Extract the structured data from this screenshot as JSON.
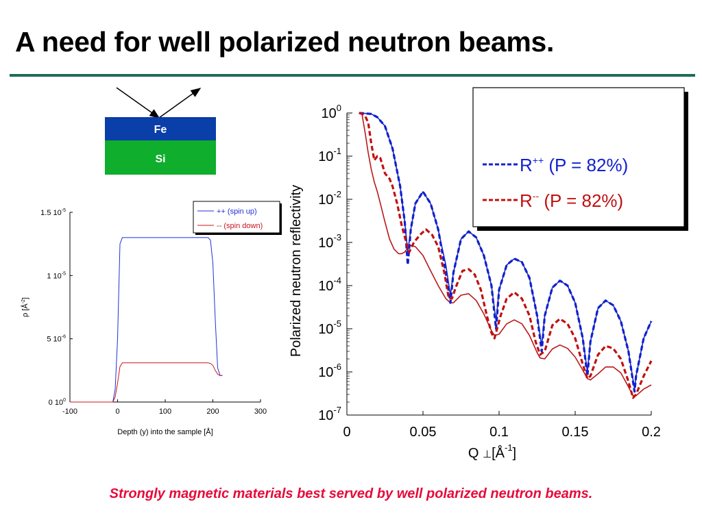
{
  "slide": {
    "title": "A need for well polarized neutron beams.",
    "caption": "Strongly magnetic materials best served by well polarized neutron beams.",
    "colors": {
      "title_rule": "#1f6b5b",
      "caption": "#e60b3a"
    }
  },
  "diagram": {
    "layers": [
      {
        "label": "Fe",
        "color": "#0a3ea8"
      },
      {
        "label": "Si",
        "color": "#0fae2c"
      }
    ],
    "icons": [
      "incident-beam-arrow-icon",
      "reflected-beam-arrow-icon"
    ]
  },
  "chart_data": [
    {
      "type": "line",
      "xlabel": "Depth (y) into the sample [Å]",
      "ylabel": "ρ  [Å-2]",
      "xlim": [
        -100,
        300
      ],
      "ylim": [
        0,
        1.5e-05
      ],
      "x_ticks": [
        {
          "value": -100,
          "label": "-100"
        },
        {
          "value": 0,
          "label": "0"
        },
        {
          "value": 100,
          "label": "100"
        },
        {
          "value": 200,
          "label": "200"
        },
        {
          "value": 300,
          "label": "300"
        }
      ],
      "y_ticks": [
        {
          "value": 0,
          "mant": "0 10",
          "exp": "0"
        },
        {
          "value": 5e-06,
          "mant": "5 10",
          "exp": "-6"
        },
        {
          "value": 1e-05,
          "mant": "1 10",
          "exp": "-5"
        },
        {
          "value": 1.5e-05,
          "mant": "1.5 10",
          "exp": "-5"
        }
      ],
      "legend_position": "top-right",
      "series": [
        {
          "name": "++ (spin up)",
          "color": "#1f2fd6",
          "x": [
            -100,
            -10,
            -5,
            0,
            5,
            10,
            190,
            195,
            200,
            205,
            210,
            215,
            220
          ],
          "y": [
            0,
            0,
            1e-06,
            5e-06,
            1.25e-05,
            1.3e-05,
            1.3e-05,
            1.28e-05,
            1.1e-05,
            6.5e-06,
            2.7e-06,
            2.1e-06,
            2.1e-06
          ]
        },
        {
          "name": "-- (spin down)",
          "color": "#c8141e",
          "x": [
            -100,
            -10,
            -5,
            0,
            5,
            10,
            190,
            195,
            200,
            205,
            210,
            215,
            220
          ],
          "y": [
            0,
            0,
            4e-07,
            1.5e-06,
            2.8e-06,
            3.1e-06,
            3.1e-06,
            3.05e-06,
            2.9e-06,
            2.5e-06,
            2.2e-06,
            2.1e-06,
            2.1e-06
          ]
        }
      ]
    },
    {
      "type": "line",
      "xlabel": "Q ⊥[Å-1]",
      "xlabel_parts": {
        "q": "Q",
        "perp": "⊥",
        "unit": "[Å",
        "exp": "-1",
        "close": "]"
      },
      "ylabel": "Polarized neutron reflectivity",
      "xlim": [
        0,
        0.2
      ],
      "ylim": [
        1e-07,
        1
      ],
      "y_scale": "log",
      "x_ticks": [
        {
          "value": 0,
          "label": "0"
        },
        {
          "value": 0.05,
          "label": "0.05"
        },
        {
          "value": 0.1,
          "label": "0.1"
        },
        {
          "value": 0.15,
          "label": "0.15"
        },
        {
          "value": 0.2,
          "label": "0.2"
        }
      ],
      "y_ticks": [
        {
          "value": 1,
          "mant": "10",
          "exp": "0"
        },
        {
          "value": 0.1,
          "mant": "10",
          "exp": "-1"
        },
        {
          "value": 0.01,
          "mant": "10",
          "exp": "-2"
        },
        {
          "value": 0.001,
          "mant": "10",
          "exp": "-3"
        },
        {
          "value": 0.0001,
          "mant": "10",
          "exp": "-4"
        },
        {
          "value": 1e-05,
          "mant": "10",
          "exp": "-5"
        },
        {
          "value": 1e-06,
          "mant": "10",
          "exp": "-6"
        },
        {
          "value": 1e-07,
          "mant": "10",
          "exp": "-7"
        }
      ],
      "legend": [
        {
          "base": "R",
          "sup": "++",
          "rest": " (P = 82%)",
          "color": "#1020d0"
        },
        {
          "base": "R",
          "sup": "--",
          "rest": " (P = 82%)",
          "color": "#c01010"
        }
      ],
      "legend_position": "top-right",
      "series": [
        {
          "name": "R++ dashed",
          "color": "#1020d0",
          "dash": true,
          "x": [
            0.008,
            0.012,
            0.016,
            0.02,
            0.025,
            0.03,
            0.035,
            0.038,
            0.04,
            0.042,
            0.045,
            0.05,
            0.055,
            0.06,
            0.065,
            0.068,
            0.07,
            0.075,
            0.08,
            0.085,
            0.09,
            0.095,
            0.098,
            0.1,
            0.105,
            0.11,
            0.115,
            0.12,
            0.125,
            0.128,
            0.13,
            0.135,
            0.14,
            0.145,
            0.15,
            0.155,
            0.158,
            0.16,
            0.165,
            0.17,
            0.175,
            0.18,
            0.185,
            0.189,
            0.19,
            0.195,
            0.2
          ],
          "y": [
            1.0,
            0.98,
            0.95,
            0.8,
            0.5,
            0.15,
            0.02,
            0.003,
            0.0003,
            0.002,
            0.008,
            0.015,
            0.008,
            0.002,
            0.0002,
            4e-05,
            0.0002,
            0.0012,
            0.0018,
            0.0013,
            0.0005,
            0.0001,
            1e-05,
            8e-05,
            0.0003,
            0.00042,
            0.00035,
            0.00015,
            2e-05,
            3e-06,
            2e-05,
            9e-05,
            0.00013,
            0.0001,
            4e-05,
            6e-06,
            8e-07,
            5e-06,
            3e-05,
            4.5e-05,
            3.5e-05,
            1.5e-05,
            3e-06,
            3.5e-07,
            8e-07,
            6e-06,
            1.5e-05
          ]
        },
        {
          "name": "R-- dashed",
          "color": "#c01010",
          "dash": true,
          "x": [
            0.008,
            0.01,
            0.012,
            0.014,
            0.016,
            0.018,
            0.02,
            0.022,
            0.025,
            0.028,
            0.03,
            0.033,
            0.036,
            0.039,
            0.041,
            0.044,
            0.048,
            0.052,
            0.056,
            0.06,
            0.064,
            0.067,
            0.069,
            0.072,
            0.076,
            0.08,
            0.084,
            0.088,
            0.092,
            0.095,
            0.097,
            0.101,
            0.105,
            0.11,
            0.115,
            0.12,
            0.124,
            0.127,
            0.13,
            0.135,
            0.14,
            0.145,
            0.15,
            0.155,
            0.158,
            0.16,
            0.165,
            0.17,
            0.175,
            0.18,
            0.185,
            0.188,
            0.19,
            0.195,
            0.2
          ],
          "y": [
            1.0,
            0.95,
            0.85,
            0.6,
            0.2,
            0.08,
            0.1,
            0.09,
            0.04,
            0.03,
            0.02,
            0.008,
            0.0025,
            0.001,
            0.0006,
            0.001,
            0.0015,
            0.002,
            0.0015,
            0.0008,
            0.0002,
            5e-05,
            5e-05,
            0.0001,
            0.00022,
            0.00024,
            0.00018,
            8e-05,
            2e-05,
            8e-06,
            6e-06,
            2e-05,
            5e-05,
            7e-05,
            5e-05,
            2e-05,
            5e-06,
            2.5e-06,
            3e-06,
            1.2e-05,
            1.7e-05,
            1.3e-05,
            6e-06,
            1.5e-06,
            7e-07,
            8e-07,
            2.5e-06,
            4e-06,
            3.5e-06,
            2e-06,
            6e-07,
            2.5e-07,
            3e-07,
            8e-07,
            1.8e-06
          ]
        },
        {
          "name": "R++ solid",
          "color": "#1a2ab8",
          "dash": false,
          "x": [
            0.008,
            0.012,
            0.016,
            0.02,
            0.025,
            0.03,
            0.035,
            0.038,
            0.04,
            0.042,
            0.045,
            0.05,
            0.055,
            0.06,
            0.065,
            0.068,
            0.07,
            0.075,
            0.08,
            0.085,
            0.09,
            0.095,
            0.098,
            0.1,
            0.105,
            0.11,
            0.115,
            0.12,
            0.125,
            0.128,
            0.13,
            0.135,
            0.14,
            0.145,
            0.15,
            0.155,
            0.158,
            0.16,
            0.165,
            0.17,
            0.175,
            0.18,
            0.185,
            0.189,
            0.19,
            0.195,
            0.2
          ],
          "y": [
            1.0,
            0.98,
            0.95,
            0.8,
            0.5,
            0.15,
            0.02,
            0.003,
            0.0006,
            0.002,
            0.008,
            0.015,
            0.008,
            0.002,
            0.0003,
            6e-05,
            0.0002,
            0.0012,
            0.0018,
            0.0013,
            0.0005,
            0.0001,
            1.5e-05,
            8e-05,
            0.0003,
            0.00042,
            0.00035,
            0.00015,
            2e-05,
            4e-06,
            2e-05,
            9e-05,
            0.00013,
            0.0001,
            4e-05,
            6e-06,
            1e-06,
            5e-06,
            3e-05,
            4.5e-05,
            3.5e-05,
            1.5e-05,
            3e-06,
            4e-07,
            8e-07,
            6e-06,
            1.5e-05
          ]
        },
        {
          "name": "R-- solid",
          "color": "#b81818",
          "dash": false,
          "x": [
            0.01,
            0.012,
            0.014,
            0.016,
            0.018,
            0.02,
            0.022,
            0.025,
            0.028,
            0.031,
            0.034,
            0.036,
            0.038,
            0.04,
            0.042,
            0.045,
            0.05,
            0.055,
            0.06,
            0.065,
            0.068,
            0.07,
            0.075,
            0.08,
            0.085,
            0.09,
            0.095,
            0.097,
            0.1,
            0.105,
            0.11,
            0.115,
            0.12,
            0.125,
            0.127,
            0.13,
            0.135,
            0.14,
            0.145,
            0.15,
            0.155,
            0.158,
            0.16,
            0.165,
            0.17,
            0.175,
            0.18,
            0.185,
            0.188,
            0.19,
            0.195,
            0.2
          ],
          "y": [
            0.9,
            0.35,
            0.12,
            0.05,
            0.025,
            0.015,
            0.008,
            0.003,
            0.0012,
            0.0007,
            0.00055,
            0.00055,
            0.0006,
            0.00075,
            0.00085,
            0.0008,
            0.0005,
            0.00022,
            0.0001,
            5e-05,
            4e-05,
            4e-05,
            6e-05,
            6.5e-05,
            4.5e-05,
            2.2e-05,
            9e-06,
            7e-06,
            7.5e-06,
            1.3e-05,
            1.6e-05,
            1.3e-05,
            7e-06,
            2.8e-06,
            2.1e-06,
            2e-06,
            3.4e-06,
            4.2e-06,
            3.5e-06,
            2.2e-06,
            1.1e-06,
            7e-07,
            6.5e-07,
            9e-07,
            1.3e-06,
            1.3e-06,
            9.5e-07,
            4.5e-07,
            2.8e-07,
            2.8e-07,
            4e-07,
            5e-07
          ]
        }
      ]
    }
  ]
}
